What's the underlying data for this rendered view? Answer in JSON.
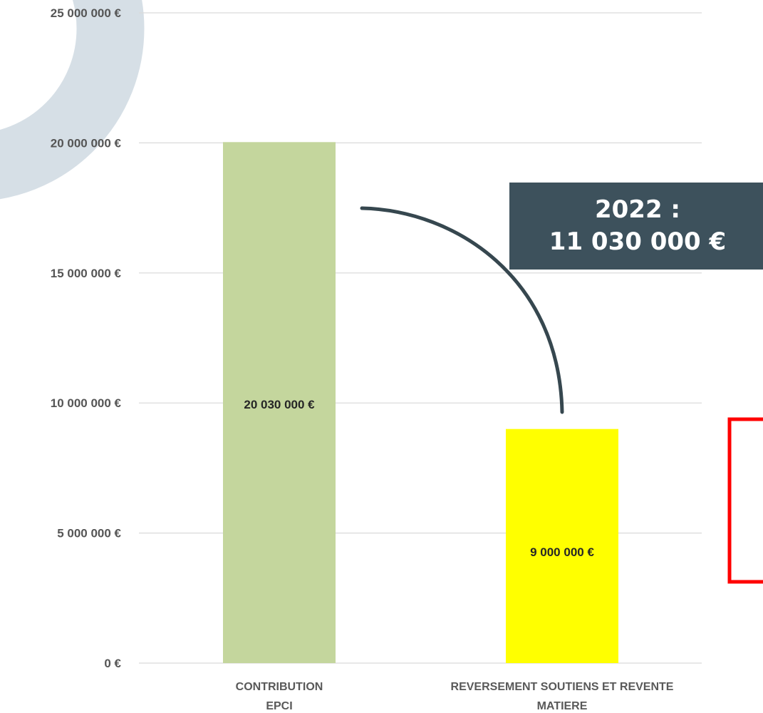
{
  "chart_data": {
    "type": "bar",
    "categories": [
      "CONTRIBUTION EPCI",
      "REVERSEMENT SOUTIENS ET REVENTE MATIERE"
    ],
    "category_lines": [
      [
        "CONTRIBUTION",
        "EPCI"
      ],
      [
        "REVERSEMENT SOUTIENS ET REVENTE",
        "MATIERE"
      ]
    ],
    "values": [
      20030000,
      9000000
    ],
    "data_labels": [
      "20 030 000 €",
      "9 000 000 €"
    ],
    "bar_colors": [
      "#c4d69d",
      "#ffff00"
    ],
    "ylim": [
      0,
      25000000
    ],
    "yticks": [
      0,
      5000000,
      10000000,
      15000000,
      20000000,
      25000000
    ],
    "ytick_labels": [
      "0 €",
      "5 000 000 €",
      "10 000 000 €",
      "15 000 000 €",
      "20 000 000 €",
      "25 000 000 €"
    ],
    "grid": true,
    "title": "",
    "xlabel": "",
    "ylabel": "",
    "annotation": {
      "lines": [
        "2022 :",
        "11 030 000 €"
      ],
      "box_color": "#3d515c",
      "arrow_color": "#36474f"
    },
    "colors": {
      "gridline": "#d9d9d9",
      "background_ring": "#d6dfe6",
      "red_box": "#ff0000"
    }
  }
}
